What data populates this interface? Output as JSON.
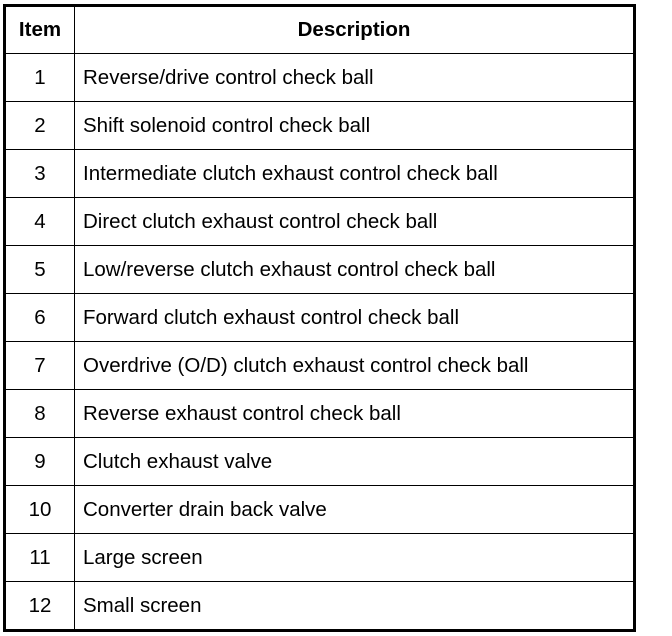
{
  "table": {
    "headers": [
      "Item",
      "Description"
    ],
    "rows": [
      {
        "item": "1",
        "description": "Reverse/drive control check ball"
      },
      {
        "item": "2",
        "description": "Shift solenoid control check ball"
      },
      {
        "item": "3",
        "description": "Intermediate clutch exhaust control check ball"
      },
      {
        "item": "4",
        "description": "Direct clutch exhaust control check ball"
      },
      {
        "item": "5",
        "description": "Low/reverse clutch exhaust control check ball"
      },
      {
        "item": "6",
        "description": "Forward clutch exhaust control check ball"
      },
      {
        "item": "7",
        "description": "Overdrive (O/D) clutch exhaust control check ball"
      },
      {
        "item": "8",
        "description": "Reverse exhaust control check ball"
      },
      {
        "item": "9",
        "description": "Clutch exhaust valve"
      },
      {
        "item": "10",
        "description": "Converter drain back valve"
      },
      {
        "item": "11",
        "description": "Large screen"
      },
      {
        "item": "12",
        "description": "Small screen"
      }
    ]
  }
}
